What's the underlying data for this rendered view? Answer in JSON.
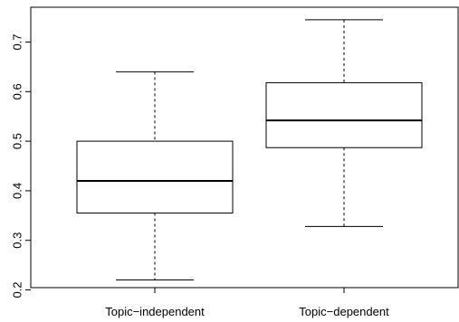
{
  "chart_data": {
    "type": "boxplot",
    "title": "",
    "xlabel": "",
    "ylabel": "",
    "ylim": [
      0.2,
      0.75
    ],
    "y_ticks": [
      0.2,
      0.3,
      0.4,
      0.5,
      0.6,
      0.7
    ],
    "y_tick_labels": [
      "0.2",
      "0.3",
      "0.4",
      "0.5",
      "0.6",
      "0.7"
    ],
    "grid": false,
    "categories": [
      "Topic−independent",
      "Topic−dependent"
    ],
    "boxes": [
      {
        "category": "Topic−independent",
        "whisker_low": 0.22,
        "q1": 0.355,
        "median": 0.42,
        "q3": 0.5,
        "whisker_high": 0.64
      },
      {
        "category": "Topic−dependent",
        "whisker_low": 0.328,
        "q1": 0.487,
        "median": 0.542,
        "q3": 0.618,
        "whisker_high": 0.745
      }
    ]
  }
}
